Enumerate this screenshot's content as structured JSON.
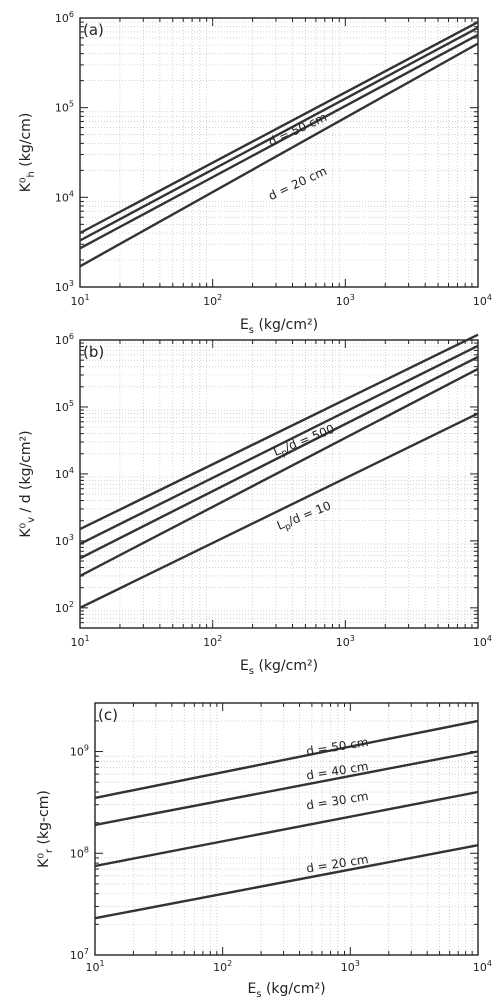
{
  "chart_data": [
    {
      "type": "line",
      "panel_label": "(a)",
      "xlabel": "E_s (kg/cm²)",
      "ylabel": "K⁰_h (kg/cm)",
      "xscale": "log",
      "yscale": "log",
      "xlim": [
        10,
        10000
      ],
      "ylim": [
        1000,
        1000000
      ],
      "x_tick_labels": [
        {
          "base": "10",
          "exp": "1"
        },
        {
          "base": "10",
          "exp": "2"
        },
        {
          "base": "10",
          "exp": "3"
        },
        {
          "base": "10",
          "exp": "4"
        }
      ],
      "y_tick_labels": [
        {
          "base": "10",
          "exp": "3"
        },
        {
          "base": "10",
          "exp": "4"
        },
        {
          "base": "10",
          "exp": "5"
        },
        {
          "base": "10",
          "exp": "6"
        }
      ],
      "grid": true,
      "series": [
        {
          "x": [
            10,
            10000
          ],
          "y": [
            1700,
            520000
          ]
        },
        {
          "x": [
            10,
            10000
          ],
          "y": [
            2700,
            650000
          ]
        },
        {
          "x": [
            10,
            10000
          ],
          "y": [
            3300,
            780000
          ]
        },
        {
          "x": [
            10,
            10000
          ],
          "y": [
            4000,
            900000
          ]
        }
      ],
      "annotations": [
        {
          "text": "d = 50 cm",
          "x": 450,
          "y": 52000,
          "angle": -25
        },
        {
          "text": "d = 20 cm",
          "x": 450,
          "y": 13000,
          "angle": -25
        }
      ]
    },
    {
      "type": "line",
      "panel_label": "(b)",
      "xlabel": "E_s (kg/cm²)",
      "ylabel": "K⁰_v / d (kg/cm²)",
      "xscale": "log",
      "yscale": "log",
      "xlim": [
        10,
        10000
      ],
      "ylim": [
        50,
        1000000
      ],
      "x_tick_labels": [
        {
          "base": "10",
          "exp": "1"
        },
        {
          "base": "10",
          "exp": "2"
        },
        {
          "base": "10",
          "exp": "3"
        },
        {
          "base": "10",
          "exp": "4"
        }
      ],
      "y_tick_labels": [
        {
          "base": "10",
          "exp": "2"
        },
        {
          "base": "10",
          "exp": "3"
        },
        {
          "base": "10",
          "exp": "4"
        },
        {
          "base": "10",
          "exp": "5"
        },
        {
          "base": "10",
          "exp": "6"
        }
      ],
      "grid": true,
      "series": [
        {
          "x": [
            10,
            10000
          ],
          "y": [
            100,
            80000
          ]
        },
        {
          "x": [
            10,
            10000
          ],
          "y": [
            300,
            370000
          ]
        },
        {
          "x": [
            10,
            10000
          ],
          "y": [
            550,
            560000
          ]
        },
        {
          "x": [
            10,
            10000
          ],
          "y": [
            900,
            820000
          ]
        },
        {
          "x": [
            10,
            10000
          ],
          "y": [
            1500,
            1200000
          ]
        }
      ],
      "annotations": [
        {
          "text": "L_p/d = 500",
          "x": 500,
          "y": 28000,
          "angle": -22
        },
        {
          "text": "L_p/d = 10",
          "x": 500,
          "y": 2100,
          "angle": -22
        }
      ]
    },
    {
      "type": "line",
      "panel_label": "(c)",
      "xlabel": "E_s (kg/cm²)",
      "ylabel": "K⁰_r (kg-cm)",
      "xscale": "log",
      "yscale": "log",
      "xlim": [
        10,
        10000
      ],
      "ylim": [
        10000000,
        3000000000
      ],
      "x_tick_labels": [
        {
          "base": "10",
          "exp": "1"
        },
        {
          "base": "10",
          "exp": "2"
        },
        {
          "base": "10",
          "exp": "3"
        },
        {
          "base": "10",
          "exp": "4"
        }
      ],
      "y_tick_labels": [
        {
          "base": "10",
          "exp": "7"
        },
        {
          "base": "10",
          "exp": "8"
        },
        {
          "base": "10",
          "exp": "9"
        }
      ],
      "grid": true,
      "series": [
        {
          "x": [
            10,
            10000
          ],
          "y": [
            23000000,
            120000000
          ]
        },
        {
          "x": [
            10,
            10000
          ],
          "y": [
            75000000,
            400000000
          ]
        },
        {
          "x": [
            10,
            10000
          ],
          "y": [
            190000000,
            1000000000
          ]
        },
        {
          "x": [
            10,
            10000
          ],
          "y": [
            350000000,
            2000000000
          ]
        }
      ],
      "annotations": [
        {
          "text": "d = 50 cm",
          "x": 800,
          "y": 1020000000,
          "angle": -9
        },
        {
          "text": "d = 40 cm",
          "x": 800,
          "y": 590000000,
          "angle": -9
        },
        {
          "text": "d = 30 cm",
          "x": 800,
          "y": 300000000,
          "angle": -9
        },
        {
          "text": "d = 20 cm",
          "x": 800,
          "y": 72000000,
          "angle": -9
        }
      ]
    }
  ]
}
